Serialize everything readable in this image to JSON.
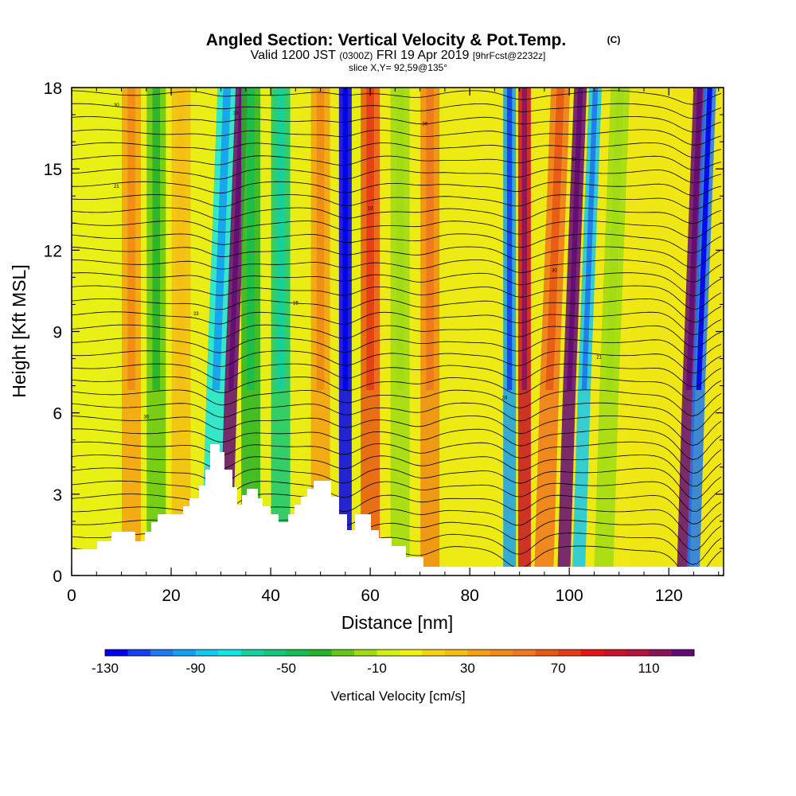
{
  "chart_data": {
    "type": "heatmap",
    "title": "Angled Section: Vertical Velocity & Pot.Temp.",
    "title_unit": "(C)",
    "subtitle_main": "Valid 1200 JST",
    "subtitle_utc": "(0300Z)",
    "subtitle_date": "FRI 19 Apr 2019",
    "subtitle_fcst": "[9hrFcst@2232z]",
    "slice_label": "slice X,Y= 92,59@135°",
    "xlabel": "Distance [nm]",
    "ylabel": "Height [Kft MSL]",
    "xlim": [
      0,
      131
    ],
    "ylim": [
      0,
      18
    ],
    "xticks": [
      "0",
      "20",
      "40",
      "60",
      "80",
      "100",
      "120"
    ],
    "yticks": [
      "0",
      "3",
      "6",
      "9",
      "12",
      "15",
      "18"
    ],
    "colorbar": {
      "label": "Vertical Velocity [cm/s]",
      "ticks": [
        "-130",
        "-90",
        "-50",
        "-10",
        "30",
        "70",
        "110"
      ],
      "colors": [
        "#0000f0",
        "#1440f0",
        "#1e78f0",
        "#14a0f0",
        "#14c8f0",
        "#14e6e6",
        "#14d2a0",
        "#14c878",
        "#14be50",
        "#28b428",
        "#64c814",
        "#a0dc14",
        "#d2f014",
        "#f0f014",
        "#f5d214",
        "#f5be14",
        "#f5a014",
        "#f08c14",
        "#f0781e",
        "#e65a14",
        "#e63c14",
        "#e61414",
        "#c81428",
        "#b4143c",
        "#8c145a",
        "#640a78"
      ]
    },
    "streaks": [
      {
        "x": 12,
        "value": 30
      },
      {
        "x": 17,
        "value": -30
      },
      {
        "x": 22,
        "value": 20
      },
      {
        "x": 29,
        "value": -80
      },
      {
        "x": 32,
        "value": 120
      },
      {
        "x": 36,
        "value": -40
      },
      {
        "x": 42,
        "value": -60
      },
      {
        "x": 50,
        "value": 30
      },
      {
        "x": 55,
        "value": -130
      },
      {
        "x": 60,
        "value": 60
      },
      {
        "x": 66,
        "value": -20
      },
      {
        "x": 72,
        "value": 40
      },
      {
        "x": 88,
        "value": -100
      },
      {
        "x": 91,
        "value": 90
      },
      {
        "x": 96,
        "value": 50
      },
      {
        "x": 100,
        "value": 130
      },
      {
        "x": 103,
        "value": -90
      },
      {
        "x": 108,
        "value": -20
      },
      {
        "x": 124,
        "value": 130
      },
      {
        "x": 126,
        "value": -110
      }
    ],
    "contour_labels": [
      "30",
      "33",
      "36",
      "24",
      "21",
      "18",
      "15"
    ]
  }
}
